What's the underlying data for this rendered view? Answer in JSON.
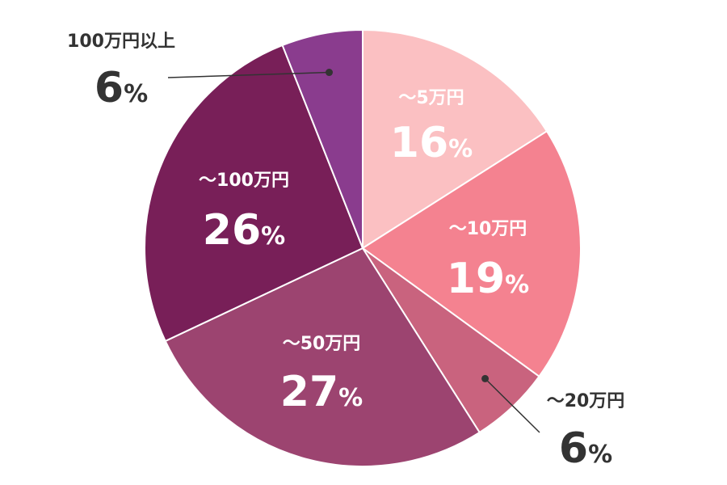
{
  "chart_data": {
    "type": "pie",
    "title": "",
    "slices": [
      {
        "label": "～5万円",
        "value": 16,
        "display": "16",
        "unit": "%",
        "color": "#fbc0c2"
      },
      {
        "label": "～10万円",
        "value": 19,
        "display": "19",
        "unit": "%",
        "color": "#f48290"
      },
      {
        "label": "～20万円",
        "value": 6,
        "display": "6",
        "unit": "%",
        "color": "#c9637e"
      },
      {
        "label": "～50万円",
        "value": 27,
        "display": "27",
        "unit": "%",
        "color": "#9c4470"
      },
      {
        "label": "～100万円",
        "value": 26,
        "display": "26",
        "unit": "%",
        "color": "#781f58"
      },
      {
        "label": "100万円以上",
        "value": 6,
        "display": "6",
        "unit": "%",
        "color": "#8a3c8e"
      }
    ],
    "start_angle": "12 o'clock",
    "direction": "clockwise",
    "slice_border_color": "#ffffff",
    "label_colors": {
      "inside": "#ffffff",
      "outside": "#333333"
    },
    "legend": "none"
  }
}
